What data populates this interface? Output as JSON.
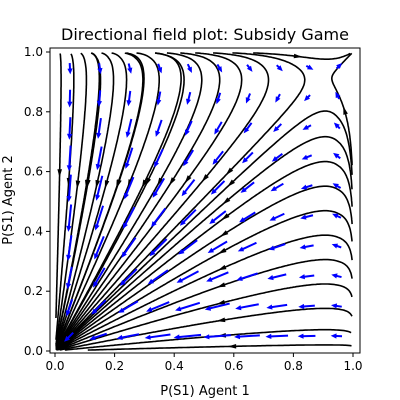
{
  "chart_data": {
    "type": "quiver+streamplot",
    "title": "Directional field plot: Subsidy Game",
    "xlabel": "P(S1) Agent 1",
    "ylabel": "P(S1) Agent 2",
    "xlim": [
      0.0,
      1.0
    ],
    "ylim": [
      0.0,
      1.0
    ],
    "xticks": [
      0.0,
      0.2,
      0.4,
      0.6,
      0.8,
      1.0
    ],
    "yticks": [
      0.0,
      0.2,
      0.4,
      0.6,
      0.8,
      1.0
    ],
    "xtick_labels": [
      "0.0",
      "0.2",
      "0.4",
      "0.6",
      "0.8",
      "1.0"
    ],
    "ytick_labels": [
      "0.0",
      "0.2",
      "0.4",
      "0.6",
      "0.8",
      "1.0"
    ],
    "grid": false,
    "legend": "none",
    "colors": {
      "streamlines": "#000000",
      "arrows": "#0000ff"
    },
    "dynamics": {
      "payoff_agent1": [
        [
          12,
          0
        ],
        [
          11,
          10
        ]
      ],
      "payoff_agent2": [
        [
          12,
          11
        ],
        [
          0,
          10
        ]
      ]
    },
    "quiver_grid": [
      0.05,
      0.15,
      0.25,
      0.35,
      0.45,
      0.55,
      0.65,
      0.75,
      0.85,
      0.95
    ],
    "stream_seeds": [
      [
        0.02,
        0.95
      ],
      [
        0.06,
        0.97
      ],
      [
        0.1,
        0.97
      ],
      [
        0.14,
        0.98
      ],
      [
        0.18,
        0.98
      ],
      [
        0.22,
        0.98
      ],
      [
        0.27,
        0.98
      ],
      [
        0.32,
        0.98
      ],
      [
        0.37,
        0.99
      ],
      [
        0.42,
        0.99
      ],
      [
        0.47,
        0.99
      ],
      [
        0.53,
        0.99
      ],
      [
        0.6,
        0.99
      ],
      [
        0.68,
        0.99
      ],
      [
        0.77,
        0.99
      ],
      [
        0.95,
        0.3
      ],
      [
        0.95,
        0.22
      ],
      [
        0.95,
        0.14
      ],
      [
        0.95,
        0.07
      ],
      [
        0.95,
        0.02
      ],
      [
        0.95,
        0.38
      ],
      [
        0.95,
        0.46
      ],
      [
        0.95,
        0.54
      ],
      [
        0.95,
        0.62
      ],
      [
        0.95,
        0.7
      ],
      [
        0.95,
        0.78
      ],
      [
        0.95,
        0.86
      ],
      [
        0.02,
        0.05
      ],
      [
        0.05,
        0.09
      ],
      [
        0.04,
        0.2
      ]
    ]
  }
}
